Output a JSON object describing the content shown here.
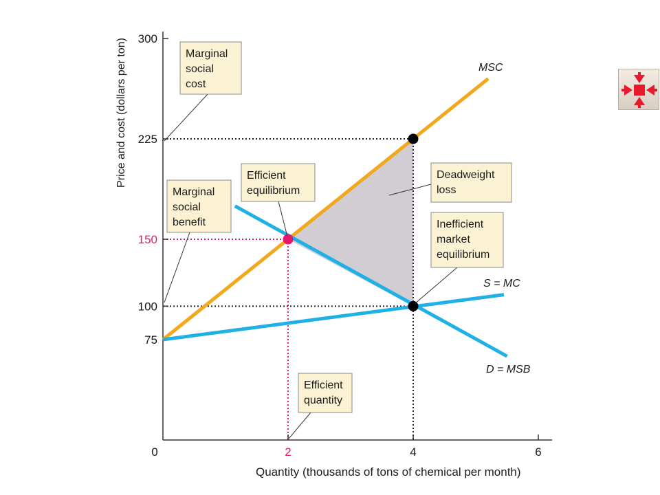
{
  "chart_data": {
    "type": "line",
    "xlabel": "Quantity (thousands of tons of chemical per month)",
    "ylabel": "Price and cost (dollars per ton)",
    "xlim": [
      0,
      6
    ],
    "ylim": [
      0,
      300
    ],
    "x_ticks": [
      "0",
      "2",
      "4",
      "6"
    ],
    "x_tick_values": [
      0,
      2,
      4,
      6
    ],
    "y_ticks": [
      "75",
      "100",
      "150",
      "225",
      "300"
    ],
    "y_tick_values": [
      75,
      100,
      150,
      225,
      300
    ],
    "grid": false,
    "series": [
      {
        "name": "MSC",
        "color": "#f0a81c",
        "x": [
          0,
          5.2
        ],
        "y": [
          75,
          270
        ]
      },
      {
        "name": "S = MC",
        "color": "#1fb1e6",
        "x": [
          0,
          5.45
        ],
        "y": [
          75,
          108.6
        ]
      },
      {
        "name": "D = MSB",
        "color": "#1fb1e6",
        "x": [
          1.15,
          5.5
        ],
        "y": [
          174.9,
          62.6
        ]
      }
    ],
    "points": [
      {
        "x": 2,
        "y": 150,
        "color": "#e6186e"
      },
      {
        "x": 4,
        "y": 225,
        "color": "#000000"
      },
      {
        "x": 4,
        "y": 100,
        "color": "#000000"
      }
    ],
    "deadweight_region": [
      [
        2,
        150
      ],
      [
        4,
        225
      ],
      [
        4,
        100
      ]
    ],
    "highlight_color": "#e6186e",
    "annotations": [
      {
        "key": "msc",
        "lines": [
          "Marginal",
          "social",
          "cost"
        ]
      },
      {
        "key": "msb",
        "lines": [
          "Marginal",
          "social",
          "benefit"
        ]
      },
      {
        "key": "eff_eq",
        "lines": [
          "Efficient",
          "equilibrium"
        ]
      },
      {
        "key": "dwl",
        "lines": [
          "Deadweight",
          "loss"
        ]
      },
      {
        "key": "ineff",
        "lines": [
          "Inefficient",
          "market",
          "equilibrium"
        ]
      },
      {
        "key": "eff_q",
        "lines": [
          "Efficient",
          "quantity"
        ]
      }
    ]
  },
  "nav_button": {
    "icon": "collapse-arrows-icon",
    "color": "#e8192c"
  }
}
